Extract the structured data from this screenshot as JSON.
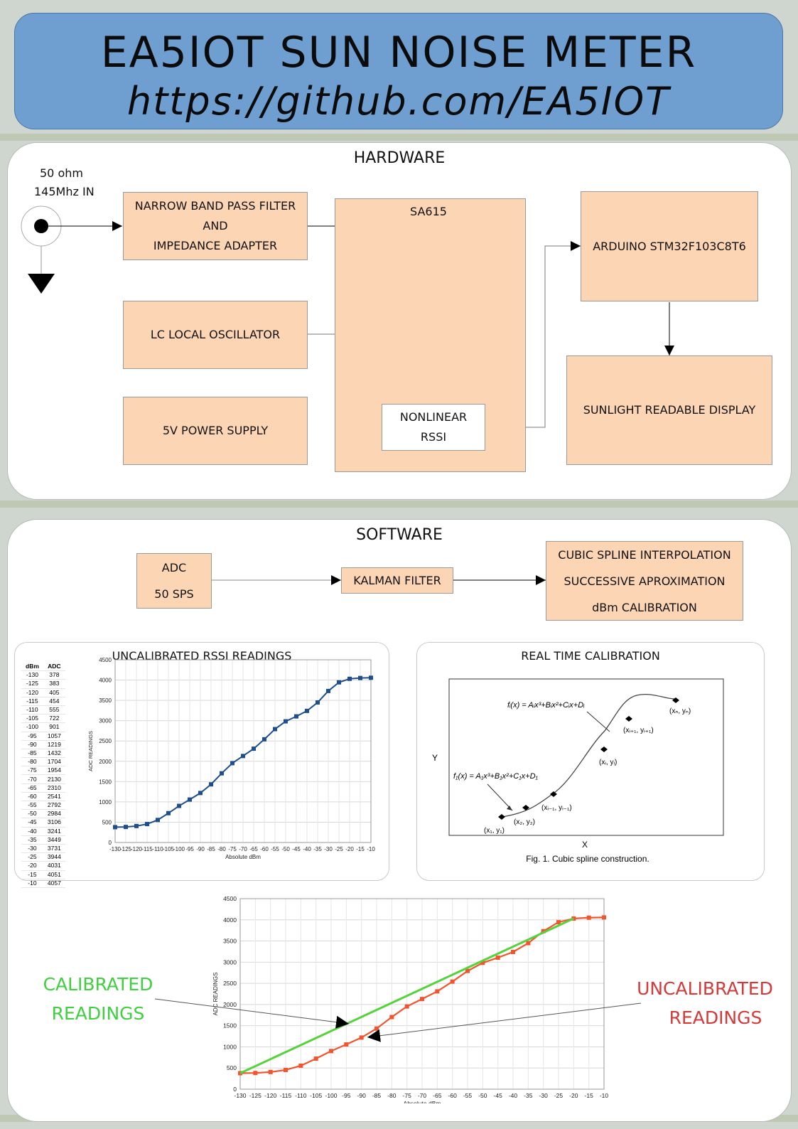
{
  "header": {
    "title": "EA5IOT SUN NOISE METER",
    "url": "https://github.com/EA5IOT"
  },
  "hardware": {
    "title": "HARDWARE",
    "input_label_1": "50 ohm",
    "input_label_2": "145Mhz IN",
    "bandpass": [
      "NARROW BAND PASS FILTER",
      "AND",
      "IMPEDANCE ADAPTER"
    ],
    "oscillator": "LC LOCAL OSCILLATOR",
    "power": "5V POWER SUPPLY",
    "chip": "SA615",
    "rssi": [
      "NONLINEAR",
      "RSSI"
    ],
    "arduino": "ARDUINO STM32F103C8T6",
    "display": "SUNLIGHT READABLE DISPLAY"
  },
  "software": {
    "title": "SOFTWARE",
    "adc": [
      "ADC",
      "50 SPS"
    ],
    "kalman": "KALMAN FILTER",
    "processing": [
      "CUBIC SPLINE INTERPOLATION",
      "SUCCESSIVE APROXIMATION",
      "dBm CALIBRATION"
    ]
  },
  "uncal_panel": {
    "title": "UNCALIBRATED RSSI READINGS",
    "table_headers": [
      "dBm",
      "ADC"
    ]
  },
  "spline_panel": {
    "title": "REAL TIME CALIBRATION",
    "caption": "Fig. 1. Cubic spline construction.",
    "y_label": "Y",
    "x_label": "X",
    "formula_i": "fᵢ(x) = Aᵢx³+Bᵢx²+Cᵢx+Dᵢ",
    "formula_1": "f₁(x) = A₁x³+B₁x²+C₁x+D₁",
    "points": [
      "(x₁, y₁)",
      "(x₂, y₂)",
      "(xᵢ₋₁, yᵢ₋₁)",
      "(xᵢ, yᵢ)",
      "(xᵢ₊₁, yᵢ₊₁)",
      "(xₙ, yₙ)"
    ]
  },
  "callouts": {
    "calibrated": [
      "CALIBRATED",
      "READINGS"
    ],
    "uncalibrated": [
      "UNCALIBRATED",
      "READINGS"
    ]
  },
  "colors": {
    "uncal_series": "#1f4e8c",
    "bottom_uncal": "#f2542d",
    "bottom_cal": "#55d33b",
    "calibrated_text": "#3fcf3f",
    "uncalibrated_text": "#d43a3a"
  },
  "chart_data": [
    {
      "type": "line",
      "title": "UNCALIBRATED RSSI READINGS",
      "xlabel": "Absolute dBm",
      "ylabel": "ADC READINGS",
      "x": [
        -130,
        -125,
        -120,
        -115,
        -110,
        -105,
        -100,
        -95,
        -90,
        -85,
        -80,
        -75,
        -70,
        -65,
        -60,
        -55,
        -50,
        -45,
        -40,
        -35,
        -30,
        -25,
        -20,
        -15,
        -10
      ],
      "x_ticks": [
        "-130",
        "-125",
        "-120",
        "-115",
        "-110",
        "-105",
        "-100",
        "-95",
        "-90",
        "-85",
        "-80",
        "-75",
        "-70",
        "-65",
        "-60",
        "-55",
        "-50",
        "-45",
        "-40",
        "-35",
        "-30",
        "-25",
        "-20",
        "-15",
        "-10"
      ],
      "y_ticks": [
        "0",
        "500",
        "1000",
        "1500",
        "2000",
        "2500",
        "3000",
        "3500",
        "4000",
        "4500"
      ],
      "ylim": [
        0,
        4500
      ],
      "xlim": [
        -130,
        -10
      ],
      "series": [
        {
          "values": [
            378,
            383,
            405,
            454,
            555,
            722,
            901,
            1057,
            1219,
            1432,
            1704,
            1954,
            2130,
            2310,
            2541,
            2792,
            2984,
            3106,
            3241,
            3449,
            3731,
            3944,
            4031,
            4051,
            4057
          ]
        }
      ],
      "grid": true
    },
    {
      "type": "line",
      "xlabel": "Absolute dBm",
      "ylabel": "ADC READINGS",
      "x": [
        -130,
        -125,
        -120,
        -115,
        -110,
        -105,
        -100,
        -95,
        -90,
        -85,
        -80,
        -75,
        -70,
        -65,
        -60,
        -55,
        -50,
        -45,
        -40,
        -35,
        -30,
        -25,
        -20,
        -15,
        -10
      ],
      "x_ticks": [
        "-130",
        "-125",
        "-120",
        "-115",
        "-110",
        "-105",
        "-100",
        "-95",
        "-90",
        "-85",
        "-80",
        "-75",
        "-70",
        "-65",
        "-60",
        "-55",
        "-50",
        "-45",
        "-40",
        "-35",
        "-30",
        "-25",
        "-20",
        "-15",
        "-10"
      ],
      "y_ticks": [
        "0",
        "500",
        "1000",
        "1500",
        "2000",
        "2500",
        "3000",
        "3500",
        "4000",
        "4500"
      ],
      "ylim": [
        0,
        4500
      ],
      "xlim": [
        -130,
        -10
      ],
      "series": [
        {
          "values": [
            378,
            383,
            405,
            454,
            555,
            722,
            901,
            1057,
            1219,
            1432,
            1704,
            1954,
            2130,
            2310,
            2541,
            2792,
            2984,
            3106,
            3241,
            3449,
            3731,
            3944,
            4031,
            4051,
            4057
          ]
        },
        {
          "x": [
            -130,
            -20
          ],
          "values": [
            378,
            4031
          ]
        }
      ],
      "grid": true
    }
  ]
}
